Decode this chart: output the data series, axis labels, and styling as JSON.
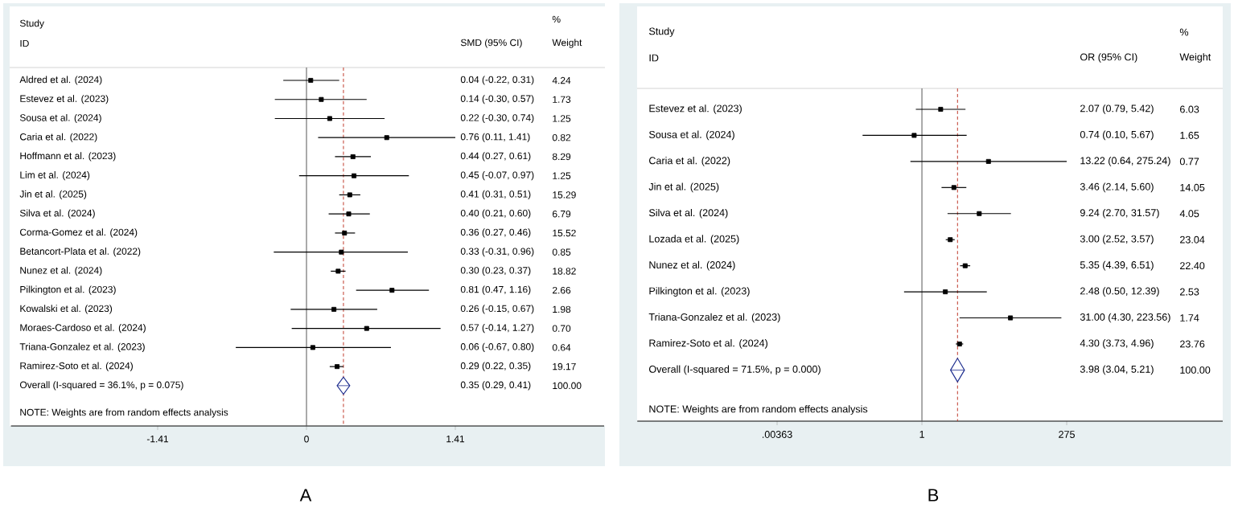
{
  "chart_data": [
    {
      "type": "scatter",
      "orientation": "horizontal",
      "title": "A",
      "categories": [
        "Aldred et al. (2024)",
        "Estevez et al. (2023)",
        "Sousa et al. (2024)",
        "Caria et al. (2022)",
        "Hoffmann et al. (2023)",
        "Lim et al. (2024)",
        "Jin et al. (2025)",
        "Silva et al. (2024)",
        "Corma-Gomez et al. (2024)",
        "Betancort-Plata et al. (2022)",
        "Nunez et al. (2024)",
        "Pilkington et al. (2023)",
        "Kowalski et al. (2023)",
        "Moraes-Cardoso et al. (2024)",
        "Triana-Gonzalez et al. (2023)",
        "Ramirez-Soto et al. (2024)",
        "Overall  (I-squared = 36.1%, p = 0.075)"
      ],
      "xlim": [
        -2.8,
        2.82
      ],
      "xticks": [
        -1.41,
        0,
        1.41
      ],
      "series": [
        {
          "marker": "square",
          "color": "#000000",
          "values": [
            0.04,
            0.14,
            0.22,
            0.76,
            0.44,
            0.45,
            0.41,
            0.4,
            0.36,
            0.33,
            0.3,
            0.81,
            0.26,
            0.57,
            0.06,
            0.29,
            null
          ],
          "errors": [
            [
              -0.22,
              0.31
            ],
            [
              -0.3,
              0.57
            ],
            [
              -0.3,
              0.74
            ],
            [
              0.11,
              1.41
            ],
            [
              0.27,
              0.61
            ],
            [
              -0.07,
              0.97
            ],
            [
              0.31,
              0.51
            ],
            [
              0.21,
              0.6
            ],
            [
              0.27,
              0.46
            ],
            [
              -0.31,
              0.96
            ],
            [
              0.23,
              0.37
            ],
            [
              0.47,
              1.16
            ],
            [
              -0.15,
              0.67
            ],
            [
              -0.14,
              1.27
            ],
            [
              -0.67,
              0.8
            ],
            [
              0.22,
              0.35
            ],
            null
          ]
        },
        {
          "marker": "diamond",
          "color": "#1f2f8f",
          "values": [
            null,
            null,
            null,
            null,
            null,
            null,
            null,
            null,
            null,
            null,
            null,
            null,
            null,
            null,
            null,
            null,
            0.35
          ],
          "errors": [
            null,
            null,
            null,
            null,
            null,
            null,
            null,
            null,
            null,
            null,
            null,
            null,
            null,
            null,
            null,
            null,
            [
              0.29,
              0.41
            ]
          ]
        }
      ],
      "ref_lines": [
        {
          "axis": "x",
          "value": 0,
          "color": "#555555",
          "line_style": "solid"
        },
        {
          "axis": "x",
          "value": 0.35,
          "color": "#c0392b",
          "line_style": "dashed"
        }
      ],
      "annotations": [
        "Study",
        "ID",
        "SMD (95% CI)",
        "%",
        "Weight",
        "NOTE: Weights are from random effects analysis",
        "0.04 (-0.22, 0.31)",
        "0.14 (-0.30, 0.57)",
        "0.22 (-0.30, 0.74)",
        "0.76 (0.11, 1.41)",
        "0.44 (0.27, 0.61)",
        "0.45 (-0.07, 0.97)",
        "0.41 (0.31, 0.51)",
        "0.40 (0.21, 0.60)",
        "0.36 (0.27, 0.46)",
        "0.33 (-0.31, 0.96)",
        "0.30 (0.23, 0.37)",
        "0.81 (0.47, 1.16)",
        "0.26 (-0.15, 0.67)",
        "0.57 (-0.14, 1.27)",
        "0.06 (-0.67, 0.80)",
        "0.29 (0.22, 0.35)",
        "0.35 (0.29, 0.41)",
        "4.24",
        "1.73",
        "1.25",
        "0.82",
        "8.29",
        "1.25",
        "15.29",
        "6.79",
        "15.52",
        "0.85",
        "18.82",
        "2.66",
        "1.98",
        "0.70",
        "0.64",
        "19.17",
        "100.00"
      ]
    },
    {
      "type": "scatter",
      "orientation": "horizontal",
      "title": "B",
      "log": "x",
      "categories": [
        "Estevez et al. (2023)",
        "Sousa et al. (2024)",
        "Caria et al. (2022)",
        "Jin et al. (2025)",
        "Silva et al. (2024)",
        "Lozada et al. (2025)",
        "Nunez et al. (2024)",
        "Pilkington et al. (2023)",
        "Triana-Gonzalez et al. (2023)",
        "Ramirez-Soto et al. (2024)",
        "Overall  (I-squared = 71.5%, p = 0.000)"
      ],
      "xlim": [
        1.6e-05,
        117000
      ],
      "xticks": [
        {
          "value": 0.00363,
          "label": ".00363"
        },
        1,
        275
      ],
      "series": [
        {
          "marker": "square",
          "color": "#000000",
          "values": [
            2.07,
            0.74,
            13.22,
            3.46,
            9.24,
            3.0,
            5.35,
            2.48,
            31.0,
            4.3,
            null
          ],
          "errors": [
            [
              0.79,
              5.42
            ],
            [
              0.1,
              5.67
            ],
            [
              0.64,
              275.24
            ],
            [
              2.14,
              5.6
            ],
            [
              2.7,
              31.57
            ],
            [
              2.52,
              3.57
            ],
            [
              4.39,
              6.51
            ],
            [
              0.5,
              12.39
            ],
            [
              4.3,
              223.56
            ],
            [
              3.73,
              4.96
            ],
            null
          ]
        },
        {
          "marker": "diamond",
          "color": "#1f2f8f",
          "values": [
            null,
            null,
            null,
            null,
            null,
            null,
            null,
            null,
            null,
            null,
            3.98
          ],
          "errors": [
            null,
            null,
            null,
            null,
            null,
            null,
            null,
            null,
            null,
            null,
            [
              3.04,
              5.21
            ]
          ]
        }
      ],
      "ref_lines": [
        {
          "axis": "x",
          "value": 1,
          "color": "#555555",
          "line_style": "solid"
        },
        {
          "axis": "x",
          "value": 3.98,
          "color": "#c0392b",
          "line_style": "dashed"
        }
      ],
      "annotations": [
        "Study",
        "ID",
        "OR (95% CI)",
        "%",
        "Weight",
        "NOTE: Weights are from random effects analysis",
        "2.07 (0.79, 5.42)",
        "0.74 (0.10, 5.67)",
        "13.22 (0.64, 275.24)",
        "3.46 (2.14, 5.60)",
        "9.24 (2.70, 31.57)",
        "3.00 (2.52, 3.57)",
        "5.35 (4.39, 6.51)",
        "2.48 (0.50, 12.39)",
        "31.00 (4.30, 223.56)",
        "4.30 (3.73, 4.96)",
        "3.98 (3.04, 5.21)",
        "6.03",
        "1.65",
        "0.77",
        "14.05",
        "4.05",
        "23.04",
        "22.40",
        "2.53",
        "1.74",
        "23.76",
        "100.00"
      ]
    }
  ]
}
